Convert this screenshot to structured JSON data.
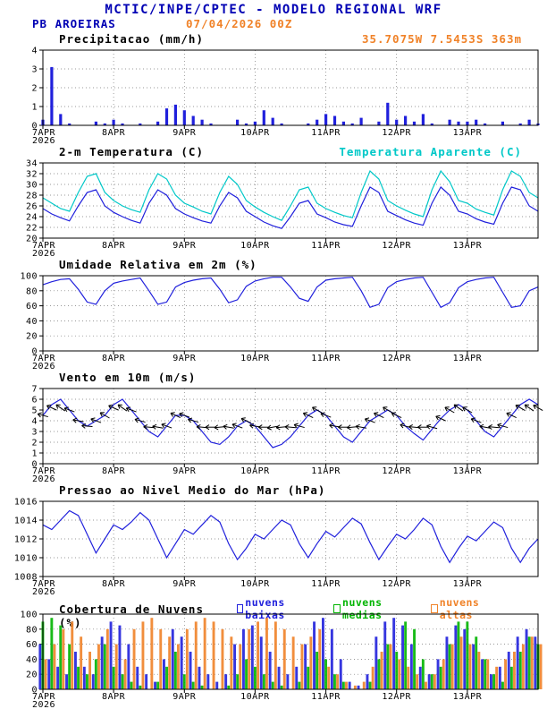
{
  "header": {
    "title": "MCTIC/INPE/CPTEC - MODELO REGIONAL WRF",
    "station": "PB AROEIRAS",
    "run": "07/04/2026 00Z"
  },
  "colors": {
    "blue": "#0000b4",
    "orange": "#f08228",
    "cyan": "#00c8c8",
    "series_blue": "#2020dc",
    "green": "#00b400"
  },
  "chart_data": {
    "x_step_hours": 3,
    "x_max_hours": 168,
    "x_ticks": [
      {
        "h": 0,
        "label": "7APR",
        "sub": "2026"
      },
      {
        "h": 24,
        "label": "8APR"
      },
      {
        "h": 48,
        "label": "9APR"
      },
      {
        "h": 72,
        "label": "10APR"
      },
      {
        "h": 96,
        "label": "11APR"
      },
      {
        "h": 120,
        "label": "12APR"
      },
      {
        "h": 144,
        "label": "13APR"
      }
    ],
    "panels": [
      {
        "id": "precipitation",
        "title": "Precipitacao (mm/h)",
        "right_label": "35.7075W 7.5453S 363m",
        "right_label_color": "#f08228",
        "type": "bar",
        "ylim": [
          0,
          4
        ],
        "yticks": [
          0,
          1,
          2,
          3,
          4
        ],
        "series": [
          {
            "name": "precipitacao",
            "color": "#2020dc",
            "values": [
              0.3,
              3.1,
              0.6,
              0.1,
              0,
              0,
              0.2,
              0.1,
              0.3,
              0.1,
              0,
              0.1,
              0,
              0.2,
              0.9,
              1.1,
              0.8,
              0.5,
              0.3,
              0.1,
              0,
              0,
              0.3,
              0.1,
              0.2,
              0.8,
              0.4,
              0.1,
              0,
              0,
              0.1,
              0.3,
              0.6,
              0.5,
              0.2,
              0.1,
              0.4,
              0,
              0.2,
              1.2,
              0.3,
              0.5,
              0.2,
              0.6,
              0.1,
              0,
              0.3,
              0.2,
              0.2,
              0.3,
              0.1,
              0,
              0.2,
              0,
              0.1,
              0.3,
              0.1
            ]
          }
        ]
      },
      {
        "id": "temperature",
        "title": "2-m Temperatura (C)",
        "right_label": "Temperatura Aparente (C)",
        "right_label_color": "#00c8c8",
        "type": "line",
        "ylim": [
          20,
          34
        ],
        "yticks": [
          20,
          22,
          24,
          26,
          28,
          30,
          32,
          34
        ],
        "series": [
          {
            "name": "2-m temperatura",
            "color": "#2020dc",
            "values": [
              25.5,
              24.5,
              23.8,
              23.2,
              26.0,
              28.5,
              29.0,
              26.0,
              24.8,
              24.0,
              23.3,
              22.8,
              26.5,
              29.0,
              28.0,
              25.5,
              24.5,
              23.8,
              23.2,
              22.8,
              26.0,
              28.5,
              27.5,
              25.0,
              24.0,
              23.0,
              22.3,
              21.8,
              24.0,
              26.5,
              27.0,
              24.5,
              23.8,
              23.0,
              22.5,
              22.2,
              26.0,
              29.5,
              28.5,
              25.0,
              24.2,
              23.4,
              22.8,
              22.4,
              26.5,
              29.5,
              28.0,
              25.0,
              24.5,
              23.6,
              23.0,
              22.6,
              26.5,
              29.5,
              29.0,
              26.0,
              25.0
            ]
          },
          {
            "name": "temperatura aparente",
            "color": "#00c8c8",
            "values": [
              27.5,
              26.5,
              25.5,
              25.0,
              28.5,
              31.5,
              32.0,
              28.5,
              27.0,
              26.0,
              25.3,
              24.8,
              29.0,
              32.0,
              31.0,
              28.0,
              26.5,
              25.8,
              25.0,
              24.5,
              28.5,
              31.5,
              30.0,
              27.0,
              25.8,
              24.8,
              24.0,
              23.3,
              26.0,
              29.0,
              29.5,
              26.5,
              25.5,
              24.8,
              24.2,
              23.8,
              28.5,
              32.5,
              31.0,
              27.0,
              26.0,
              25.2,
              24.5,
              24.0,
              29.0,
              32.5,
              30.5,
              27.0,
              26.5,
              25.4,
              24.8,
              24.3,
              29.0,
              32.5,
              31.5,
              28.5,
              27.5
            ]
          }
        ]
      },
      {
        "id": "humidity",
        "title": "Umidade Relativa em 2m (%)",
        "type": "line",
        "ylim": [
          0,
          100
        ],
        "yticks": [
          0,
          20,
          40,
          60,
          80,
          100
        ],
        "series": [
          {
            "name": "umidade relativa",
            "color": "#2020dc",
            "values": [
              88,
              92,
              95,
              96,
              82,
              65,
              62,
              80,
              90,
              93,
              95,
              97,
              80,
              62,
              65,
              85,
              91,
              94,
              96,
              97,
              82,
              64,
              68,
              86,
              93,
              96,
              98,
              98,
              85,
              70,
              66,
              85,
              94,
              96,
              97,
              98,
              80,
              58,
              62,
              84,
              92,
              95,
              97,
              98,
              78,
              58,
              64,
              84,
              92,
              95,
              97,
              98,
              78,
              58,
              60,
              80,
              85
            ]
          }
        ]
      },
      {
        "id": "wind",
        "title": "Vento em 10m (m/s)",
        "type": "line",
        "ylim": [
          0,
          7
        ],
        "yticks": [
          0,
          1,
          2,
          3,
          4,
          5,
          6,
          7
        ],
        "series": [
          {
            "name": "vento 10m",
            "color": "#2020dc",
            "values": [
              4.5,
              5.5,
              6.0,
              5.0,
              4.0,
              3.5,
              4.0,
              4.5,
              5.5,
              6.0,
              5.0,
              4.0,
              3.0,
              2.5,
              3.5,
              4.5,
              4.5,
              4.0,
              3.0,
              2.0,
              1.8,
              2.5,
              3.5,
              4.0,
              3.5,
              2.5,
              1.5,
              1.8,
              2.5,
              3.5,
              4.5,
              5.0,
              4.5,
              3.5,
              2.5,
              2.0,
              3.0,
              4.0,
              4.5,
              5.0,
              4.5,
              3.5,
              2.8,
              2.2,
              3.2,
              4.2,
              5.0,
              5.5,
              5.0,
              4.0,
              3.0,
              2.5,
              3.5,
              4.5,
              5.5,
              6.0,
              5.5
            ]
          }
        ],
        "barbs": {
          "color": "#000000",
          "angles": [
            195,
            205,
            215,
            200,
            190,
            185,
            200,
            210,
            205,
            215,
            200,
            195,
            185,
            190,
            200,
            205,
            200,
            195,
            185,
            180,
            175,
            190,
            200,
            205,
            190,
            180,
            170,
            175,
            185,
            195,
            205,
            210,
            200,
            190,
            180,
            175,
            190,
            200,
            205,
            210,
            205,
            195,
            185,
            180,
            195,
            205,
            210,
            215,
            210,
            200,
            190,
            185,
            195,
            205,
            210,
            215,
            210
          ]
        }
      },
      {
        "id": "pressure",
        "title": "Pressao ao Nivel Medio do Mar (hPa)",
        "type": "line",
        "ylim": [
          1008,
          1016
        ],
        "yticks": [
          1008,
          1010,
          1012,
          1014,
          1016
        ],
        "series": [
          {
            "name": "pressao nivel do mar",
            "color": "#2020dc",
            "values": [
              1013.5,
              1013.0,
              1014.0,
              1015.0,
              1014.5,
              1012.5,
              1010.5,
              1012.0,
              1013.5,
              1013.0,
              1013.8,
              1014.8,
              1014.0,
              1012.0,
              1010.0,
              1011.5,
              1013.0,
              1012.5,
              1013.5,
              1014.5,
              1013.8,
              1011.5,
              1009.8,
              1011.0,
              1012.5,
              1012.0,
              1013.0,
              1014.0,
              1013.5,
              1011.5,
              1010.0,
              1011.5,
              1012.8,
              1012.2,
              1013.2,
              1014.2,
              1013.6,
              1011.6,
              1009.8,
              1011.2,
              1012.5,
              1012.0,
              1013.0,
              1014.2,
              1013.5,
              1011.2,
              1009.5,
              1011.0,
              1012.3,
              1011.8,
              1012.8,
              1013.8,
              1013.2,
              1011.0,
              1009.5,
              1011.0,
              1012.0
            ]
          }
        ]
      },
      {
        "id": "clouds",
        "title": "Cobertura de Nuvens (%)",
        "type": "bargroup",
        "ylim": [
          0,
          100
        ],
        "yticks": [
          0,
          20,
          40,
          60,
          80,
          100
        ],
        "legend": [
          {
            "label": "nuvens baixas",
            "color": "#2020dc"
          },
          {
            "label": "nuvens medias",
            "color": "#00b400"
          },
          {
            "label": "nuvens altas",
            "color": "#f08228"
          }
        ],
        "series": [
          {
            "name": "nuvens baixas",
            "color": "#2020dc",
            "values": [
              60,
              40,
              30,
              20,
              50,
              30,
              20,
              70,
              90,
              85,
              60,
              30,
              20,
              10,
              40,
              80,
              70,
              50,
              30,
              20,
              10,
              20,
              60,
              80,
              85,
              70,
              50,
              30,
              20,
              30,
              60,
              90,
              95,
              80,
              40,
              10,
              5,
              20,
              70,
              90,
              95,
              85,
              60,
              30,
              20,
              40,
              70,
              85,
              80,
              60,
              40,
              20,
              30,
              50,
              70,
              80,
              70
            ]
          },
          {
            "name": "nuvens medias",
            "color": "#00b400",
            "values": [
              90,
              95,
              85,
              60,
              30,
              20,
              40,
              60,
              30,
              20,
              10,
              5,
              0,
              10,
              30,
              50,
              20,
              10,
              5,
              0,
              0,
              5,
              20,
              40,
              30,
              20,
              10,
              5,
              0,
              10,
              30,
              50,
              40,
              20,
              10,
              0,
              0,
              10,
              40,
              60,
              50,
              90,
              80,
              40,
              20,
              30,
              60,
              90,
              90,
              70,
              40,
              20,
              10,
              30,
              50,
              70,
              60
            ]
          },
          {
            "name": "nuvens altas",
            "color": "#f08228",
            "values": [
              40,
              60,
              80,
              90,
              70,
              50,
              60,
              80,
              60,
              40,
              80,
              90,
              95,
              80,
              70,
              60,
              80,
              90,
              95,
              90,
              80,
              70,
              60,
              80,
              90,
              95,
              90,
              80,
              70,
              60,
              70,
              80,
              30,
              20,
              10,
              5,
              10,
              30,
              50,
              60,
              40,
              30,
              20,
              10,
              20,
              40,
              60,
              70,
              60,
              50,
              40,
              30,
              40,
              50,
              60,
              70,
              60
            ]
          }
        ]
      }
    ]
  }
}
